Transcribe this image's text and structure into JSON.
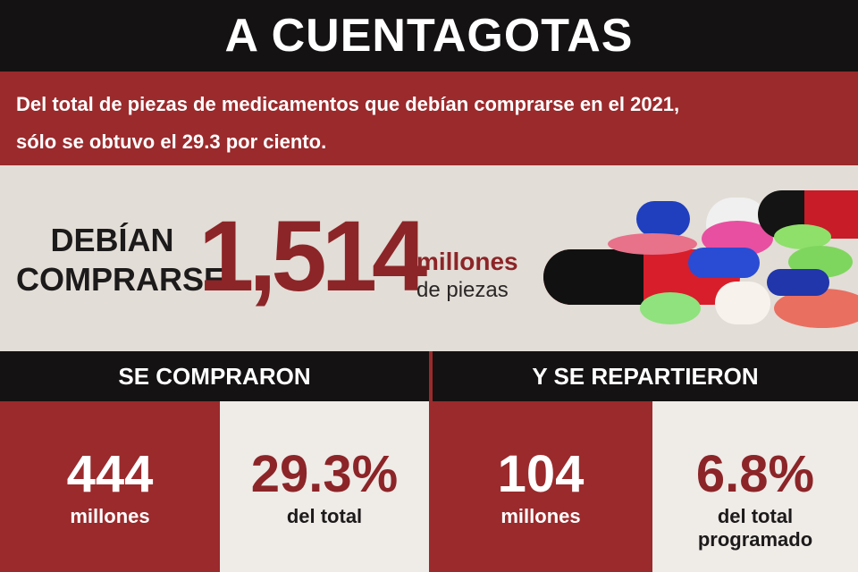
{
  "title": "A CUENTAGOTAS",
  "subtitle": {
    "line1": "Del total de piezas de medicamentos que debían comprarse en el 2021,",
    "line2": "sólo se obtuvo el 29.3 por ciento."
  },
  "main": {
    "label_line1": "DEBÍAN",
    "label_line2": "COMPRARSE",
    "number": "1,514",
    "unit_line1": "millones",
    "unit_line2": "de piezas"
  },
  "sections": {
    "left_header": "SE COMPRARON",
    "right_header": "Y SE REPARTIERON"
  },
  "stats": [
    {
      "value": "444",
      "label": "millones",
      "label2": ""
    },
    {
      "value": "29.3%",
      "label": "del total",
      "label2": ""
    },
    {
      "value": "104",
      "label": "millones",
      "label2": ""
    },
    {
      "value": "6.8%",
      "label": "del total",
      "label2": "programado"
    }
  ],
  "colors": {
    "dark": "#141212",
    "red": "#9a2a2c",
    "beige": "#e2ddd6",
    "light": "#efebe7"
  },
  "icons": [
    "pills-image"
  ]
}
